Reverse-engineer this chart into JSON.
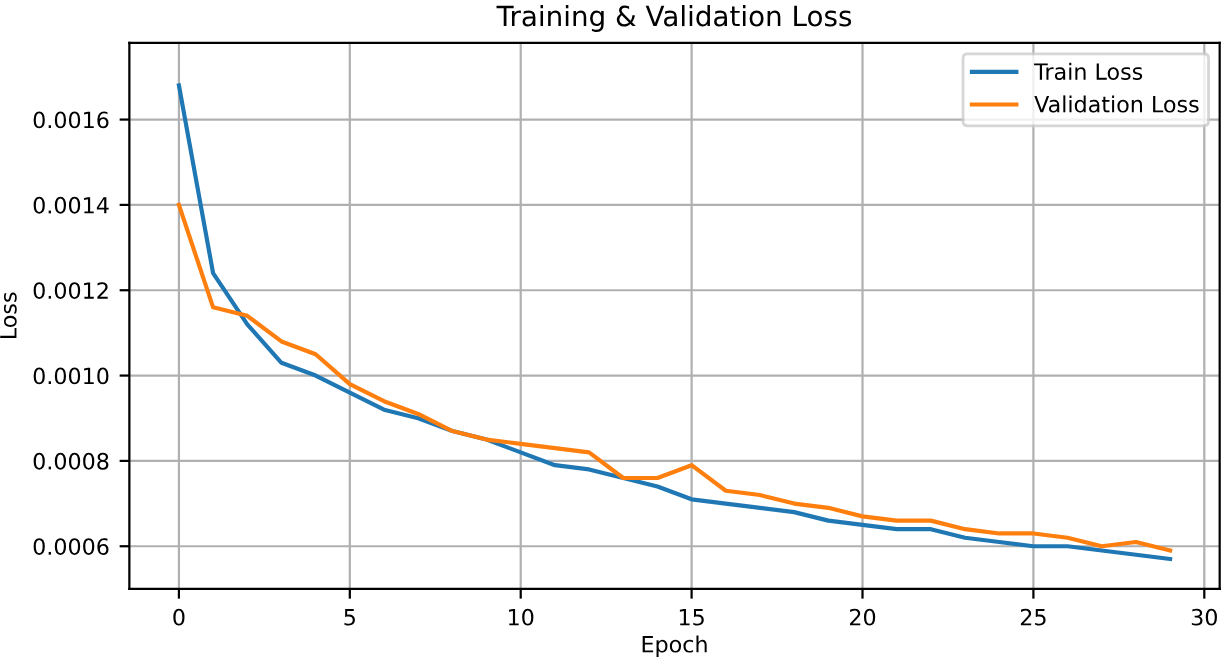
{
  "chart_data": {
    "type": "line",
    "title": "Training & Validation Loss",
    "xlabel": "Epoch",
    "ylabel": "Loss",
    "x": [
      0,
      1,
      2,
      3,
      4,
      5,
      6,
      7,
      8,
      9,
      10,
      11,
      12,
      13,
      14,
      15,
      16,
      17,
      18,
      19,
      20,
      21,
      22,
      23,
      24,
      25,
      26,
      27,
      28,
      29
    ],
    "series": [
      {
        "name": "Train Loss",
        "color": "#1f77b4",
        "values": [
          0.00168,
          0.00124,
          0.00112,
          0.00103,
          0.001,
          0.00096,
          0.00092,
          0.0009,
          0.00087,
          0.00085,
          0.00082,
          0.00079,
          0.00078,
          0.00076,
          0.00074,
          0.00071,
          0.0007,
          0.00069,
          0.00068,
          0.00066,
          0.00065,
          0.00064,
          0.00064,
          0.00062,
          0.00061,
          0.0006,
          0.0006,
          0.00059,
          0.00058,
          0.00057
        ]
      },
      {
        "name": "Validation Loss",
        "color": "#ff7f0e",
        "values": [
          0.0014,
          0.00116,
          0.00114,
          0.00108,
          0.00105,
          0.00098,
          0.00094,
          0.00091,
          0.00087,
          0.00085,
          0.00084,
          0.00083,
          0.00082,
          0.00076,
          0.00076,
          0.00079,
          0.00073,
          0.00072,
          0.0007,
          0.00069,
          0.00067,
          0.00066,
          0.00066,
          0.00064,
          0.00063,
          0.00063,
          0.00062,
          0.0006,
          0.00061,
          0.00059
        ]
      }
    ],
    "xlim": [
      -1.45,
      30.45
    ],
    "xticks": [
      0,
      5,
      10,
      15,
      20,
      25,
      30
    ],
    "ylim": [
      0.0005,
      0.00178
    ],
    "yticks": [
      0.0006,
      0.0008,
      {
        "value": 0.001,
        "label": "0.0010"
      },
      0.0012,
      0.0014,
      0.0016
    ],
    "grid": true,
    "legend": "top right",
    "marker": "none",
    "line_style": "solid"
  }
}
